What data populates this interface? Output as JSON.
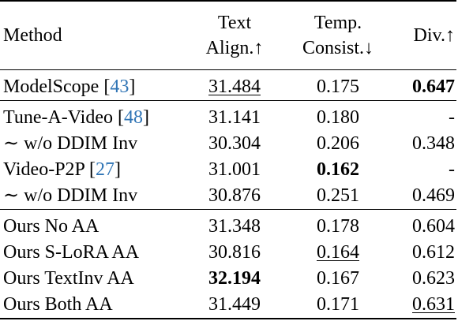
{
  "header": {
    "method": "Method",
    "text_align": [
      "Text",
      "Align.↑"
    ],
    "temp_consist": [
      "Temp.",
      "Consist.↓"
    ],
    "div": "Div.↑"
  },
  "rows": [
    {
      "group": 1,
      "method": "ModelScope ",
      "ref": "43",
      "text_align": "31.484",
      "temp_consist": "0.175",
      "div": "0.647",
      "style": {
        "text_align": "underline",
        "temp_consist": "",
        "div": "bold"
      }
    },
    {
      "group": 2,
      "method": "Tune-A-Video ",
      "ref": "48",
      "text_align": "31.141",
      "temp_consist": "0.180",
      "div": "-",
      "style": {
        "text_align": "",
        "temp_consist": "",
        "div": ""
      }
    },
    {
      "group": 2,
      "method": "∼ w/o DDIM Inv",
      "ref": "",
      "text_align": "30.304",
      "temp_consist": "0.206",
      "div": "0.348",
      "style": {
        "text_align": "",
        "temp_consist": "",
        "div": ""
      }
    },
    {
      "group": 2,
      "method": "Video-P2P ",
      "ref": "27",
      "text_align": "31.001",
      "temp_consist": "0.162",
      "div": "-",
      "style": {
        "text_align": "",
        "temp_consist": "bold",
        "div": ""
      }
    },
    {
      "group": 2,
      "method": "∼ w/o DDIM Inv",
      "ref": "",
      "text_align": "30.876",
      "temp_consist": "0.251",
      "div": "0.469",
      "style": {
        "text_align": "",
        "temp_consist": "",
        "div": ""
      }
    },
    {
      "group": 3,
      "method": "Ours No AA",
      "ref": "",
      "text_align": "31.348",
      "temp_consist": "0.178",
      "div": "0.604",
      "style": {
        "text_align": "",
        "temp_consist": "",
        "div": ""
      }
    },
    {
      "group": 3,
      "method": "Ours S-LoRA AA",
      "ref": "",
      "text_align": "30.816",
      "temp_consist": "0.164",
      "div": "0.612",
      "style": {
        "text_align": "",
        "temp_consist": "underline",
        "div": ""
      }
    },
    {
      "group": 3,
      "method": "Ours TextInv AA",
      "ref": "",
      "text_align": "32.194",
      "temp_consist": "0.167",
      "div": "0.623",
      "style": {
        "text_align": "bold",
        "temp_consist": "",
        "div": ""
      }
    },
    {
      "group": 3,
      "method": "Ours Both AA",
      "ref": "",
      "text_align": "31.449",
      "temp_consist": "0.171",
      "div": "0.631",
      "style": {
        "text_align": "",
        "temp_consist": "",
        "div": "underline"
      }
    }
  ]
}
